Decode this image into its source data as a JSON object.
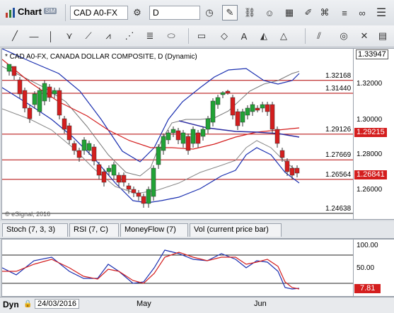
{
  "window": {
    "title": "Chart",
    "title_badge": "SIM"
  },
  "toolbar": {
    "symbol_value": "CAD A0-FX",
    "interval_value": "D"
  },
  "chart": {
    "legend": "* CAD A0-FX, CANADA DOLLAR COMPOSITE, D (Dynamic)",
    "copyright": "© eSignal, 2016",
    "price_axis": {
      "top": "1.33947",
      "ticks": [
        "1.32000",
        "1.30000",
        "1.28000",
        "1.26000"
      ],
      "current_price": "1.26841",
      "ma_price": "1.29215"
    },
    "levels": [
      {
        "label": "1.32168",
        "value": 1.32168
      },
      {
        "label": "1.31440",
        "value": 1.3144
      },
      {
        "label": "1.29126",
        "value": 1.29126
      },
      {
        "label": "1.27669",
        "value": 1.27669
      },
      {
        "label": "1.26564",
        "value": 1.26564
      },
      {
        "label": "1.24638",
        "value": 1.24638
      }
    ],
    "colors": {
      "up": "#21a336",
      "down": "#d41e1e",
      "level": "#b00000",
      "ma": "#d41e1e",
      "band": "#1a2fb0",
      "inner_band": "#888888"
    }
  },
  "indicator_tabs": [
    {
      "label": "Stoch (7, 3, 3)"
    },
    {
      "label": "RSI (7, C)"
    },
    {
      "label": "MoneyFlow (7)"
    },
    {
      "label": "Vol (current price bar)"
    }
  ],
  "oscillator": {
    "ticks": [
      "100.00",
      "50.00"
    ],
    "current_value": "7.81"
  },
  "time_axis": {
    "mode": "Dyn",
    "start_date": "24/03/2016",
    "months": [
      "May",
      "Jun"
    ]
  }
}
